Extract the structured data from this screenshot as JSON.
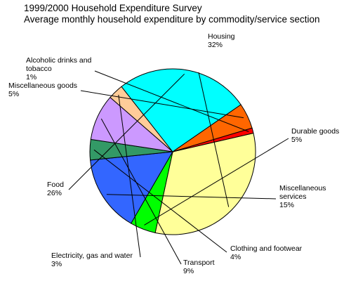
{
  "chart_data": {
    "type": "pie",
    "title": "1999/2000 Household Expenditure Survey",
    "subtitle": "Average monthly household expenditure by commodity/service section",
    "start_angle_deg": 13,
    "direction": "clockwise",
    "slices": [
      {
        "label_lines": [
          "Housing",
          "32%"
        ],
        "value": 32,
        "color": "#FFFF99"
      },
      {
        "label_lines": [
          "Durable goods",
          "5%"
        ],
        "value": 5,
        "color": "#00FF00"
      },
      {
        "label_lines": [
          "Miscellaneous",
          "services",
          "15%"
        ],
        "value": 15,
        "color": "#3366FF"
      },
      {
        "label_lines": [
          "Clothing and footwear",
          "4%"
        ],
        "value": 4,
        "color": "#339966"
      },
      {
        "label_lines": [
          "Transport",
          "9%"
        ],
        "value": 9,
        "color": "#CC99FF"
      },
      {
        "label_lines": [
          "Electricity, gas and water",
          "3%"
        ],
        "value": 3,
        "color": "#FFCC99"
      },
      {
        "label_lines": [
          "Food",
          "26%"
        ],
        "value": 26,
        "color": "#00FFFF"
      },
      {
        "label_lines": [
          "Miscellaneous goods",
          "5%"
        ],
        "value": 5,
        "color": "#FF6600"
      },
      {
        "label_lines": [
          "Alcoholic drinks and",
          "tobacco",
          "1%"
        ],
        "value": 1,
        "color": "#FF0000"
      }
    ]
  }
}
